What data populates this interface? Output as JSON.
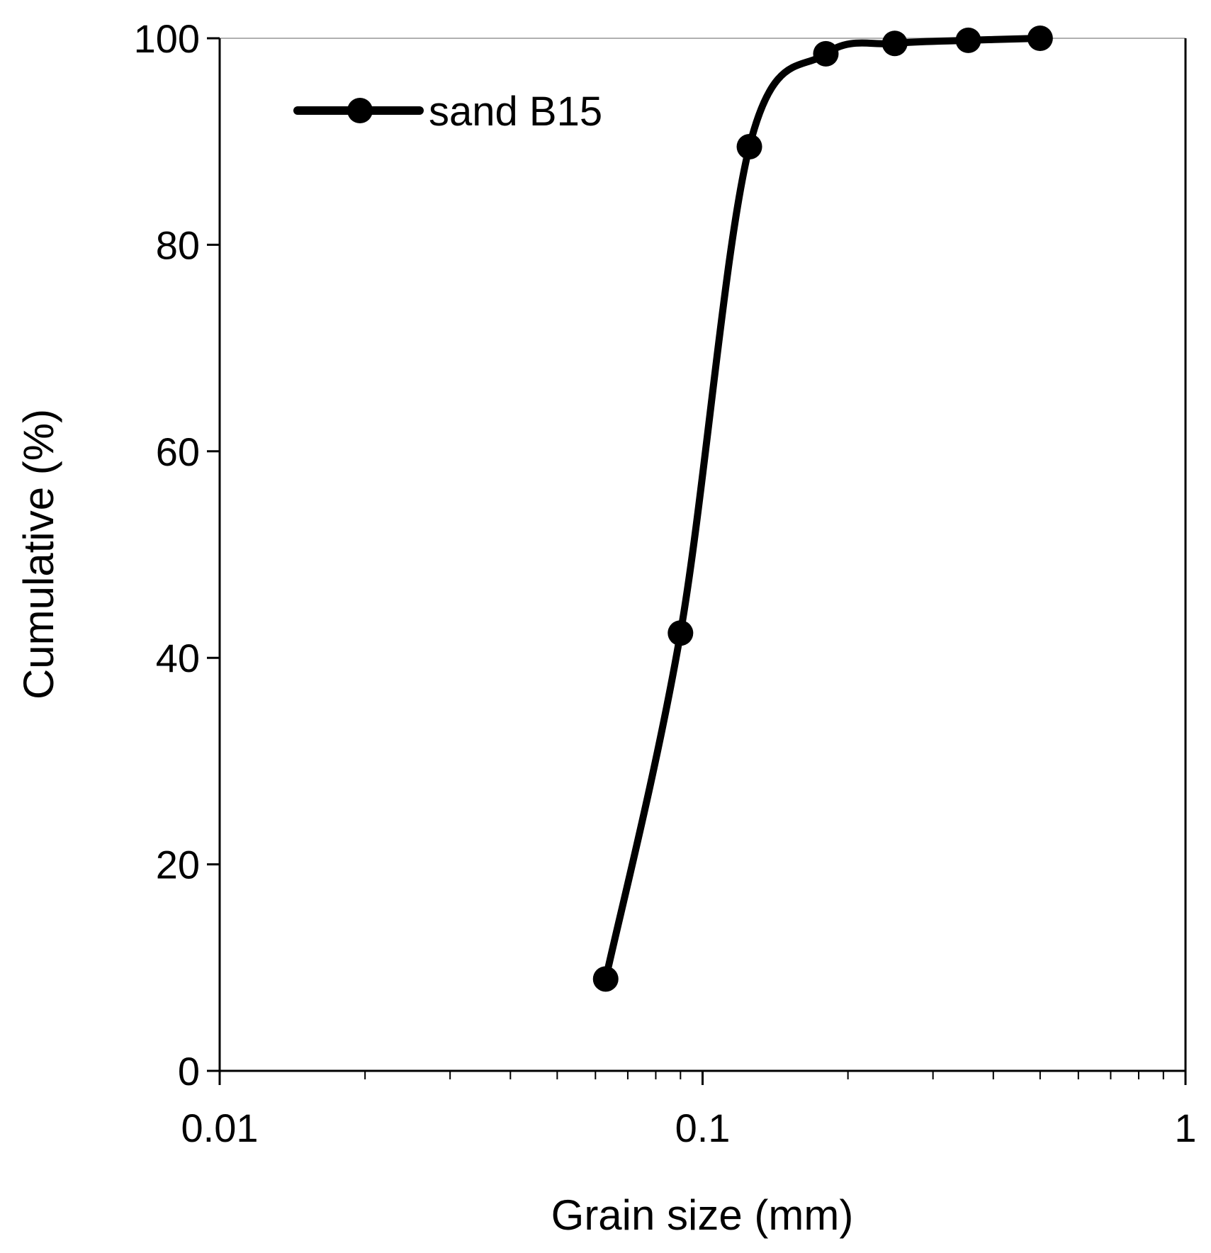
{
  "chart_data": {
    "type": "line",
    "title": "",
    "xlabel": "Grain size (mm)",
    "ylabel": "Cumulative (%)",
    "xscale": "log",
    "xlim": [
      0.01,
      1
    ],
    "ylim": [
      0,
      100
    ],
    "xticks": [
      "0.01",
      "0.1",
      "1"
    ],
    "yticks": [
      "0",
      "20",
      "40",
      "60",
      "80",
      "100"
    ],
    "grid": false,
    "legend_position": "top-left",
    "smooth": true,
    "colors": {
      "series": "#000000",
      "axis": "#000000",
      "top_border": "#b0b0b0"
    },
    "series": [
      {
        "name": "sand B15",
        "marker": "circle",
        "x": [
          0.063,
          0.09,
          0.125,
          0.18,
          0.25,
          0.355,
          0.5
        ],
        "y": [
          8.9,
          42.4,
          89.5,
          98.5,
          99.5,
          99.8,
          100
        ]
      }
    ]
  }
}
